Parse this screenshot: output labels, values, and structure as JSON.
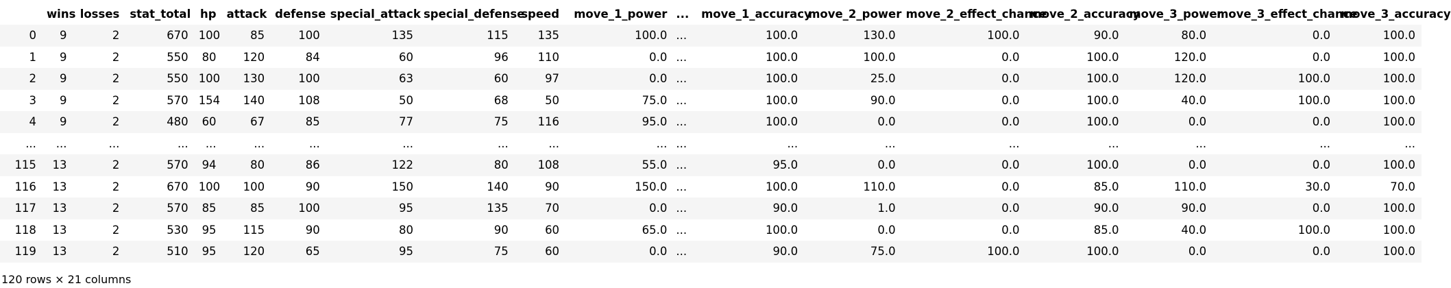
{
  "table": {
    "columns": [
      "",
      "wins",
      "losses",
      "stat_total",
      "hp",
      "attack",
      "defense",
      "special_attack",
      "special_defense",
      "speed",
      "move_1_power",
      "...",
      "move_1_accuracy",
      "move_2_power",
      "move_2_effect_chance",
      "move_2_accuracy",
      "move_3_power",
      "move_3_effect_chance",
      "move_3_accuracy"
    ],
    "rows": [
      [
        "0",
        "9",
        "2",
        "670",
        "100",
        "85",
        "100",
        "135",
        "115",
        "135",
        "100.0",
        "...",
        "100.0",
        "130.0",
        "100.0",
        "90.0",
        "80.0",
        "0.0",
        "100.0"
      ],
      [
        "1",
        "9",
        "2",
        "550",
        "80",
        "120",
        "84",
        "60",
        "96",
        "110",
        "0.0",
        "...",
        "100.0",
        "100.0",
        "0.0",
        "100.0",
        "120.0",
        "0.0",
        "100.0"
      ],
      [
        "2",
        "9",
        "2",
        "550",
        "100",
        "130",
        "100",
        "63",
        "60",
        "97",
        "0.0",
        "...",
        "100.0",
        "25.0",
        "0.0",
        "100.0",
        "120.0",
        "100.0",
        "100.0"
      ],
      [
        "3",
        "9",
        "2",
        "570",
        "154",
        "140",
        "108",
        "50",
        "68",
        "50",
        "75.0",
        "...",
        "100.0",
        "90.0",
        "0.0",
        "100.0",
        "40.0",
        "100.0",
        "100.0"
      ],
      [
        "4",
        "9",
        "2",
        "480",
        "60",
        "67",
        "85",
        "77",
        "75",
        "116",
        "95.0",
        "...",
        "100.0",
        "0.0",
        "0.0",
        "100.0",
        "0.0",
        "0.0",
        "100.0"
      ],
      [
        "...",
        "...",
        "...",
        "...",
        "...",
        "...",
        "...",
        "...",
        "...",
        "...",
        "...",
        "...",
        "...",
        "...",
        "...",
        "...",
        "...",
        "...",
        "..."
      ],
      [
        "115",
        "13",
        "2",
        "570",
        "94",
        "80",
        "86",
        "122",
        "80",
        "108",
        "55.0",
        "...",
        "95.0",
        "0.0",
        "0.0",
        "100.0",
        "0.0",
        "0.0",
        "100.0"
      ],
      [
        "116",
        "13",
        "2",
        "670",
        "100",
        "100",
        "90",
        "150",
        "140",
        "90",
        "150.0",
        "...",
        "100.0",
        "110.0",
        "0.0",
        "85.0",
        "110.0",
        "30.0",
        "70.0"
      ],
      [
        "117",
        "13",
        "2",
        "570",
        "85",
        "85",
        "100",
        "95",
        "135",
        "70",
        "0.0",
        "...",
        "90.0",
        "1.0",
        "0.0",
        "90.0",
        "90.0",
        "0.0",
        "100.0"
      ],
      [
        "118",
        "13",
        "2",
        "530",
        "95",
        "115",
        "90",
        "80",
        "90",
        "60",
        "65.0",
        "...",
        "100.0",
        "0.0",
        "0.0",
        "85.0",
        "40.0",
        "100.0",
        "100.0"
      ],
      [
        "119",
        "13",
        "2",
        "510",
        "95",
        "120",
        "65",
        "95",
        "75",
        "60",
        "0.0",
        "...",
        "90.0",
        "75.0",
        "100.0",
        "100.0",
        "0.0",
        "0.0",
        "100.0"
      ]
    ]
  },
  "footer": {
    "shape_text": "120 rows × 21 columns"
  }
}
